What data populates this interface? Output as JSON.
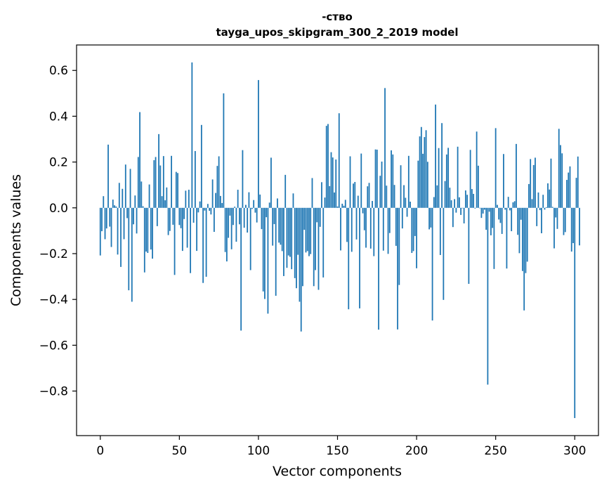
{
  "chart_data": {
    "type": "bar",
    "title": "-ство",
    "subtitle": "tayga_upos_skipgram_300_2_2019 model",
    "xlabel": "Vector components",
    "ylabel": "Components values",
    "xlim": [
      -15,
      315
    ],
    "ylim": [
      -0.9946,
      0.7112
    ],
    "x_ticks": [
      0,
      50,
      100,
      150,
      200,
      250,
      300
    ],
    "x_tick_labels": [
      "0",
      "50",
      "100",
      "150",
      "200",
      "250",
      "300"
    ],
    "y_ticks": [
      -0.8,
      -0.6,
      -0.4,
      -0.2,
      0.0,
      0.2,
      0.4,
      0.6
    ],
    "y_tick_labels": [
      "−0.8",
      "−0.6",
      "−0.4",
      "−0.2",
      "0.0",
      "0.2",
      "0.4",
      "0.6"
    ],
    "bar_color": "#1f77b4",
    "values": [
      -0.208,
      -0.102,
      0.051,
      -0.137,
      -0.09,
      0.276,
      -0.082,
      -0.171,
      0.036,
      0.011,
      0.006,
      -0.204,
      0.109,
      -0.258,
      0.083,
      -0.137,
      0.189,
      -0.045,
      -0.36,
      0.17,
      -0.41,
      -0.072,
      0.054,
      -0.112,
      0.222,
      0.418,
      0.115,
      0.007,
      -0.282,
      -0.191,
      -0.197,
      0.102,
      -0.182,
      -0.222,
      0.208,
      0.222,
      -0.08,
      0.322,
      0.185,
      0.051,
      0.226,
      0.033,
      0.089,
      -0.119,
      -0.101,
      0.227,
      -0.074,
      -0.293,
      0.157,
      0.152,
      -0.075,
      -0.089,
      -0.188,
      -0.049,
      0.075,
      -0.174,
      0.079,
      -0.285,
      0.635,
      -0.065,
      0.248,
      -0.188,
      -0.02,
      0.028,
      0.362,
      -0.328,
      -0.012,
      -0.301,
      0.017,
      -0.013,
      -0.029,
      0.124,
      -0.105,
      0.065,
      0.183,
      0.225,
      0.052,
      0.021,
      0.5,
      -0.193,
      -0.234,
      -0.131,
      -0.034,
      -0.181,
      -0.075,
      0.005,
      -0.148,
      0.079,
      -0.072,
      -0.536,
      0.252,
      -0.087,
      0.013,
      -0.108,
      0.068,
      -0.272,
      -0.005,
      0.034,
      -0.021,
      -0.064,
      0.558,
      0.058,
      -0.093,
      -0.365,
      -0.398,
      -0.041,
      -0.462,
      0.023,
      0.219,
      -0.165,
      -0.071,
      -0.384,
      0.041,
      -0.152,
      -0.161,
      -0.189,
      -0.298,
      0.144,
      -0.262,
      -0.208,
      -0.214,
      -0.268,
      0.063,
      -0.307,
      -0.351,
      -0.205,
      -0.41,
      -0.54,
      -0.342,
      -0.096,
      -0.195,
      -0.189,
      -0.211,
      -0.202,
      0.13,
      -0.342,
      -0.272,
      -0.063,
      -0.358,
      -0.083,
      0.112,
      -0.304,
      0.045,
      0.358,
      0.366,
      0.095,
      0.243,
      0.22,
      0.067,
      0.211,
      0.006,
      0.413,
      -0.186,
      0.018,
      0.009,
      0.035,
      -0.149,
      -0.443,
      0.225,
      -0.192,
      0.106,
      0.113,
      -0.138,
      0.053,
      -0.439,
      0.237,
      -0.024,
      -0.098,
      -0.174,
      0.094,
      0.109,
      -0.178,
      0.03,
      -0.211,
      0.255,
      0.254,
      -0.532,
      0.14,
      0.202,
      -0.187,
      0.523,
      0.097,
      -0.201,
      -0.11,
      0.251,
      0.233,
      0.1,
      -0.166,
      -0.531,
      -0.337,
      0.186,
      -0.09,
      0.099,
      0.044,
      -0.039,
      0.227,
      0.027,
      -0.197,
      -0.189,
      -0.123,
      -0.264,
      0.206,
      0.312,
      0.353,
      0.236,
      0.309,
      0.339,
      0.201,
      -0.094,
      -0.086,
      -0.492,
      0.047,
      0.451,
      0.098,
      0.261,
      -0.206,
      0.37,
      -0.402,
      0.117,
      0.233,
      0.262,
      0.088,
      0.033,
      -0.084,
      0.038,
      -0.021,
      0.267,
      0.046,
      -0.031,
      -0.002,
      -0.068,
      0.076,
      0.057,
      -0.332,
      0.253,
      0.082,
      0.061,
      -0.003,
      0.333,
      0.184,
      -0.002,
      -0.044,
      -0.025,
      -0.008,
      -0.096,
      -0.772,
      -0.017,
      -0.12,
      -0.088,
      -0.267,
      0.348,
      0.013,
      -0.051,
      -0.066,
      -0.114,
      0.235,
      -0.008,
      -0.265,
      0.048,
      -0.011,
      -0.102,
      0.024,
      0.029,
      0.279,
      -0.118,
      -0.198,
      -0.052,
      -0.276,
      -0.448,
      -0.285,
      -0.235,
      0.104,
      0.213,
      0.038,
      0.187,
      0.219,
      -0.08,
      0.067,
      -0.01,
      -0.111,
      0.057,
      -0.008,
      0.003,
      0.107,
      0.08,
      0.215,
      0.004,
      -0.177,
      -0.042,
      -0.092,
      0.345,
      0.274,
      0.238,
      -0.119,
      -0.106,
      0.122,
      0.154,
      0.181,
      -0.191,
      -0.154,
      -0.918,
      0.131,
      0.224,
      -0.164
    ]
  }
}
